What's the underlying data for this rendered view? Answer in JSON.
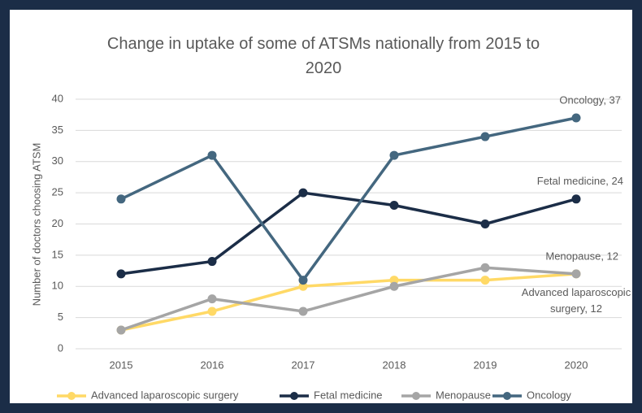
{
  "chart_data": {
    "type": "line",
    "title": "Change in uptake of some of ATSMs nationally from 2015 to 2020",
    "y_label": "Number of doctors choosing ATSM",
    "categories": [
      "2015",
      "2016",
      "2017",
      "2018",
      "2019",
      "2020"
    ],
    "series": [
      {
        "name": "Advanced laparoscopic surgery",
        "color": "#ffd966",
        "values": [
          3,
          6,
          10,
          11,
          11,
          12
        ],
        "value_labels": [
          null,
          null,
          null,
          null,
          null,
          "Advanced laparoscopic surgery, 12"
        ]
      },
      {
        "name": "Fetal medicine",
        "color": "#1b2d47",
        "values": [
          12,
          14,
          25,
          23,
          20,
          24
        ],
        "value_labels": [
          null,
          null,
          null,
          null,
          null,
          "Fetal medicine, 24"
        ]
      },
      {
        "name": "Menopause",
        "color": "#a5a5a5",
        "values": [
          3,
          8,
          6,
          10,
          13,
          12
        ],
        "value_labels": [
          null,
          null,
          null,
          null,
          null,
          "Menopause, 12"
        ]
      },
      {
        "name": "Oncology",
        "color": "#44677f",
        "values": [
          24,
          31,
          11,
          31,
          34,
          37
        ],
        "value_labels": [
          null,
          null,
          null,
          null,
          null,
          "Oncology, 37"
        ]
      }
    ],
    "ylim": [
      0,
      40
    ],
    "yticks": [
      0,
      5,
      10,
      15,
      20,
      25,
      30,
      35,
      40
    ],
    "grid": true,
    "legend": "bottom"
  }
}
